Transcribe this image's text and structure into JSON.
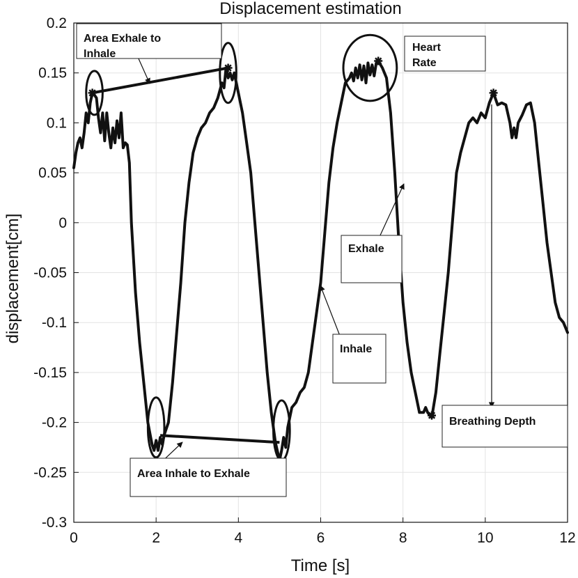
{
  "chart_data": {
    "type": "line",
    "title": "Displacement estimation",
    "xlabel": "Time [s]",
    "ylabel": "displacement[cm]",
    "xlim": [
      0,
      12
    ],
    "ylim": [
      -0.3,
      0.2
    ],
    "grid": true,
    "x_ticks": [
      0,
      2,
      4,
      6,
      8,
      10,
      12
    ],
    "x_tick_labels": [
      "0",
      "2",
      "4",
      "6",
      "8",
      "10",
      "12"
    ],
    "y_ticks": [
      0.2,
      0.15,
      0.1,
      0.05,
      0,
      -0.05,
      -0.1,
      -0.15,
      -0.2,
      -0.25,
      -0.3
    ],
    "y_tick_labels": [
      "0.2",
      "0.15",
      "0.1",
      "0.05",
      "0",
      "-0.05",
      "-0.1",
      "-0.15",
      "-0.2",
      "-0.25",
      "-0.3"
    ],
    "series": [
      {
        "name": "displacement",
        "color": "#111111",
        "points": [
          [
            0.0,
            0.055
          ],
          [
            0.05,
            0.07
          ],
          [
            0.1,
            0.08
          ],
          [
            0.15,
            0.085
          ],
          [
            0.2,
            0.075
          ],
          [
            0.25,
            0.09
          ],
          [
            0.3,
            0.11
          ],
          [
            0.35,
            0.1
          ],
          [
            0.4,
            0.12
          ],
          [
            0.45,
            0.13
          ],
          [
            0.5,
            0.128
          ],
          [
            0.55,
            0.125
          ],
          [
            0.6,
            0.105
          ],
          [
            0.65,
            0.09
          ],
          [
            0.7,
            0.11
          ],
          [
            0.75,
            0.082
          ],
          [
            0.8,
            0.11
          ],
          [
            0.85,
            0.09
          ],
          [
            0.9,
            0.075
          ],
          [
            0.95,
            0.095
          ],
          [
            1.0,
            0.08
          ],
          [
            1.05,
            0.102
          ],
          [
            1.1,
            0.085
          ],
          [
            1.15,
            0.11
          ],
          [
            1.2,
            0.075
          ],
          [
            1.25,
            0.08
          ],
          [
            1.3,
            0.078
          ],
          [
            1.35,
            0.06
          ],
          [
            1.4,
            0.0
          ],
          [
            1.5,
            -0.07
          ],
          [
            1.6,
            -0.12
          ],
          [
            1.7,
            -0.16
          ],
          [
            1.8,
            -0.2
          ],
          [
            1.9,
            -0.222
          ],
          [
            1.95,
            -0.228
          ],
          [
            2.0,
            -0.218
          ],
          [
            2.05,
            -0.228
          ],
          [
            2.1,
            -0.215
          ],
          [
            2.15,
            -0.222
          ],
          [
            2.2,
            -0.212
          ],
          [
            2.3,
            -0.2
          ],
          [
            2.4,
            -0.16
          ],
          [
            2.5,
            -0.11
          ],
          [
            2.6,
            -0.06
          ],
          [
            2.7,
            0.0
          ],
          [
            2.8,
            0.04
          ],
          [
            2.9,
            0.07
          ],
          [
            3.0,
            0.085
          ],
          [
            3.1,
            0.095
          ],
          [
            3.2,
            0.1
          ],
          [
            3.3,
            0.11
          ],
          [
            3.4,
            0.115
          ],
          [
            3.5,
            0.125
          ],
          [
            3.6,
            0.14
          ],
          [
            3.65,
            0.135
          ],
          [
            3.7,
            0.155
          ],
          [
            3.75,
            0.145
          ],
          [
            3.8,
            0.15
          ],
          [
            3.85,
            0.143
          ],
          [
            3.9,
            0.15
          ],
          [
            4.0,
            0.13
          ],
          [
            4.1,
            0.11
          ],
          [
            4.2,
            0.08
          ],
          [
            4.3,
            0.05
          ],
          [
            4.4,
            0.0
          ],
          [
            4.5,
            -0.05
          ],
          [
            4.6,
            -0.1
          ],
          [
            4.7,
            -0.15
          ],
          [
            4.8,
            -0.19
          ],
          [
            4.9,
            -0.22
          ],
          [
            5.0,
            -0.238
          ],
          [
            5.05,
            -0.228
          ],
          [
            5.1,
            -0.215
          ],
          [
            5.15,
            -0.225
          ],
          [
            5.2,
            -0.205
          ],
          [
            5.3,
            -0.185
          ],
          [
            5.4,
            -0.18
          ],
          [
            5.5,
            -0.17
          ],
          [
            5.6,
            -0.165
          ],
          [
            5.7,
            -0.15
          ],
          [
            5.8,
            -0.12
          ],
          [
            5.9,
            -0.09
          ],
          [
            6.0,
            -0.06
          ],
          [
            6.1,
            -0.01
          ],
          [
            6.2,
            0.04
          ],
          [
            6.3,
            0.075
          ],
          [
            6.4,
            0.1
          ],
          [
            6.5,
            0.12
          ],
          [
            6.6,
            0.14
          ],
          [
            6.7,
            0.145
          ],
          [
            6.75,
            0.15
          ],
          [
            6.8,
            0.142
          ],
          [
            6.85,
            0.155
          ],
          [
            6.9,
            0.145
          ],
          [
            6.95,
            0.158
          ],
          [
            7.0,
            0.143
          ],
          [
            7.05,
            0.157
          ],
          [
            7.1,
            0.14
          ],
          [
            7.15,
            0.16
          ],
          [
            7.2,
            0.148
          ],
          [
            7.25,
            0.158
          ],
          [
            7.3,
            0.147
          ],
          [
            7.35,
            0.16
          ],
          [
            7.4,
            0.162
          ],
          [
            7.5,
            0.155
          ],
          [
            7.6,
            0.145
          ],
          [
            7.7,
            0.11
          ],
          [
            7.8,
            0.05
          ],
          [
            7.9,
            -0.02
          ],
          [
            8.0,
            -0.08
          ],
          [
            8.1,
            -0.12
          ],
          [
            8.2,
            -0.15
          ],
          [
            8.3,
            -0.17
          ],
          [
            8.4,
            -0.19
          ],
          [
            8.5,
            -0.19
          ],
          [
            8.55,
            -0.185
          ],
          [
            8.6,
            -0.19
          ],
          [
            8.7,
            -0.195
          ],
          [
            8.8,
            -0.17
          ],
          [
            8.9,
            -0.13
          ],
          [
            9.0,
            -0.09
          ],
          [
            9.1,
            -0.05
          ],
          [
            9.2,
            0.0
          ],
          [
            9.3,
            0.05
          ],
          [
            9.4,
            0.07
          ],
          [
            9.5,
            0.085
          ],
          [
            9.6,
            0.1
          ],
          [
            9.7,
            0.105
          ],
          [
            9.8,
            0.1
          ],
          [
            9.9,
            0.11
          ],
          [
            10.0,
            0.105
          ],
          [
            10.1,
            0.12
          ],
          [
            10.2,
            0.13
          ],
          [
            10.3,
            0.118
          ],
          [
            10.4,
            0.12
          ],
          [
            10.5,
            0.118
          ],
          [
            10.6,
            0.1
          ],
          [
            10.65,
            0.085
          ],
          [
            10.7,
            0.095
          ],
          [
            10.75,
            0.085
          ],
          [
            10.8,
            0.1
          ],
          [
            10.9,
            0.108
          ],
          [
            11.0,
            0.118
          ],
          [
            11.1,
            0.12
          ],
          [
            11.2,
            0.1
          ],
          [
            11.3,
            0.06
          ],
          [
            11.4,
            0.02
          ],
          [
            11.5,
            -0.02
          ],
          [
            11.6,
            -0.05
          ],
          [
            11.7,
            -0.08
          ],
          [
            11.8,
            -0.095
          ],
          [
            11.9,
            -0.1
          ],
          [
            12.0,
            -0.11
          ]
        ]
      }
    ],
    "markers": [
      {
        "name": "star-exhale-to-inhale-start",
        "x": 0.45,
        "y": 0.13
      },
      {
        "name": "star-exhale-to-inhale-end",
        "x": 3.75,
        "y": 0.155
      },
      {
        "name": "star-heart-rate",
        "x": 7.4,
        "y": 0.162
      },
      {
        "name": "star-breathing-depth-top",
        "x": 10.2,
        "y": 0.13
      },
      {
        "name": "star-breathing-depth-bottom",
        "x": 8.7,
        "y": -0.193
      }
    ],
    "ellipses": [
      {
        "name": "ellipse-exhale-to-inhale-start",
        "x": 0.5,
        "y": 0.13,
        "rx": 0.2,
        "ry": 0.022
      },
      {
        "name": "ellipse-exhale-to-inhale-end",
        "x": 3.75,
        "y": 0.15,
        "rx": 0.2,
        "ry": 0.03
      },
      {
        "name": "ellipse-heart-rate",
        "x": 7.2,
        "y": 0.155,
        "rx": 0.65,
        "ry": 0.033
      },
      {
        "name": "ellipse-inhale-to-exhale-start",
        "x": 2.0,
        "y": -0.205,
        "rx": 0.2,
        "ry": 0.03
      },
      {
        "name": "ellipse-inhale-to-exhale-end",
        "x": 5.05,
        "y": -0.208,
        "rx": 0.2,
        "ry": 0.03
      }
    ],
    "connectors": [
      {
        "name": "connector-exhale-to-inhale",
        "x1": 0.45,
        "y1": 0.13,
        "x2": 3.75,
        "y2": 0.155
      },
      {
        "name": "connector-inhale-to-exhale",
        "x1": 2.1,
        "y1": -0.213,
        "x2": 5.0,
        "y2": -0.22
      }
    ],
    "annotations": [
      {
        "name": "annotation-area-exhale-to-inhale",
        "lines": [
          "Area Exhale to",
          "Inhale"
        ]
      },
      {
        "name": "annotation-heart-rate",
        "lines": [
          "Heart",
          "Rate"
        ]
      },
      {
        "name": "annotation-exhale",
        "lines": [
          "Exhale"
        ]
      },
      {
        "name": "annotation-inhale",
        "lines": [
          "Inhale"
        ]
      },
      {
        "name": "annotation-breathing-depth",
        "lines": [
          "Breathing Depth"
        ]
      },
      {
        "name": "annotation-area-inhale-to-exhale",
        "lines": [
          "Area Inhale to  Exhale"
        ]
      }
    ]
  }
}
